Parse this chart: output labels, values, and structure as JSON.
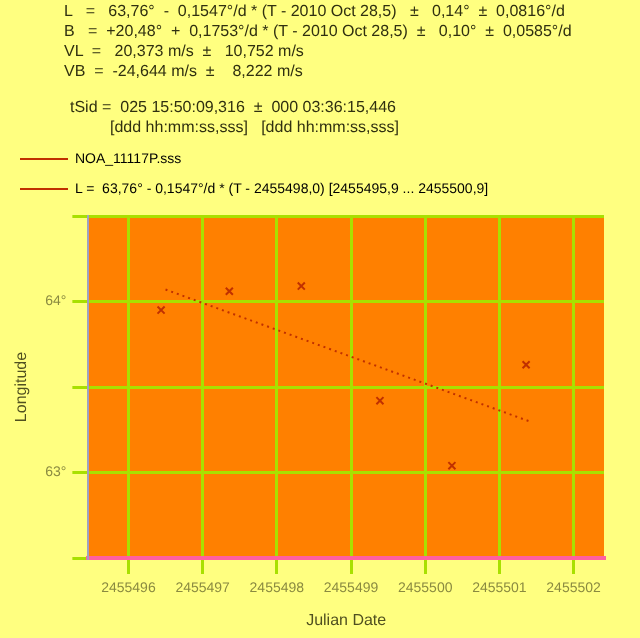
{
  "chart_data": {
    "type": "scatter",
    "annotations": [
      "L   =   63,76°  -  0,1547°/d * (T - 2010 Oct 28,5)   ±   0,14°  ±  0,0816°/d",
      "B   =  +20,48°  +  0,1753°/d * (T - 2010 Oct 28,5)  ±   0,10°  ±  0,0585°/d",
      "VL  =   20,373 m/s  ±   10,752 m/s",
      "VB  =  -24,644 m/s  ±    8,222 m/s",
      "tSid =  025 15:50:09,316  ±  000 03:36:15,446",
      "         [ddd hh:mm:ss,sss]   [ddd hh:mm:ss,sss]"
    ],
    "xlabel": "Julian Date",
    "ylabel": "Longitude",
    "series": [
      {
        "name": "NOA_11117P.sss",
        "color": "#c03000",
        "marker": "cross",
        "x": [
          2455496.44,
          2455497.36,
          2455498.33,
          2455499.39,
          2455500.36,
          2455501.36
        ],
        "values": [
          63.95,
          64.06,
          64.09,
          63.42,
          63.04,
          63.63
        ]
      },
      {
        "name": "L =  63,76° - 0,1547°/d * (T - 2455498,0) [2455495,9 ... 2455500,9]",
        "type": "line",
        "color": "#c03000",
        "line_style": "dotted",
        "marker": "none",
        "x": [
          2455496.5,
          2455501.4
        ],
        "values": [
          64.07,
          63.3
        ]
      }
    ],
    "xlim": [
      2455495.46,
      2455502.41
    ],
    "xticks": [
      2455496,
      2455497,
      2455498,
      2455499,
      2455500,
      2455501,
      2455502
    ],
    "ylim": [
      62.5,
      64.5
    ],
    "yticks": [
      {
        "value": 62.5,
        "label": null
      },
      {
        "value": 63,
        "label": "63°"
      },
      {
        "value": 63.5,
        "label": null
      },
      {
        "value": 64,
        "label": "64°"
      },
      {
        "value": 64.5,
        "label": null
      }
    ],
    "grid": true,
    "legend": "top left"
  }
}
